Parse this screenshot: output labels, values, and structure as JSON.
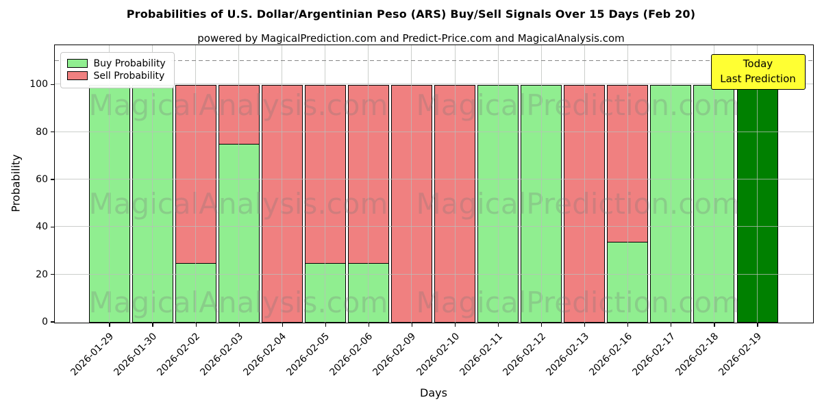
{
  "header": {
    "title": "Probabilities of U.S. Dollar/Argentinian Peso (ARS) Buy/Sell Signals Over 15 Days (Feb 20)",
    "subtitle": "powered by MagicalPrediction.com and Predict-Price.com and MagicalAnalysis.com"
  },
  "annotation": {
    "line1": "Today",
    "line2": "Last Prediction",
    "bg": "#ffff33",
    "border_color": "#000000"
  },
  "watermarks": {
    "texts": [
      "MagicalAnalysis.com",
      "MagicalPrediction.com"
    ],
    "color": "rgba(120,120,120,0.27)",
    "rows": 3
  },
  "chart_data": {
    "type": "bar",
    "stacked": true,
    "title": "Probabilities of U.S. Dollar/Argentinian Peso (ARS) Buy/Sell Signals Over 15 Days (Feb 20)",
    "xlabel": "Days",
    "ylabel": "Probability",
    "categories": [
      "2026-01-29",
      "2026-01-30",
      "2026-02-02",
      "2026-02-03",
      "2026-02-04",
      "2026-02-05",
      "2026-02-06",
      "2026-02-09",
      "2026-02-10",
      "2026-02-11",
      "2026-02-12",
      "2026-02-13",
      "2026-02-16",
      "2026-02-17",
      "2026-02-18",
      "2026-02-19"
    ],
    "series": [
      {
        "name": "Buy Probability",
        "color": "#90ee90",
        "values": [
          100,
          100,
          25,
          75,
          0,
          25,
          25,
          0,
          0,
          100,
          100,
          0,
          34,
          100,
          100,
          100
        ]
      },
      {
        "name": "Sell Probability",
        "color": "#f08080",
        "values": [
          0,
          0,
          75,
          25,
          100,
          75,
          75,
          100,
          100,
          0,
          0,
          100,
          66,
          0,
          0,
          0
        ]
      }
    ],
    "today": {
      "category": "2026-02-19",
      "color": "#008000"
    },
    "yticks": [
      0,
      20,
      40,
      60,
      80,
      100
    ],
    "ylim": [
      0,
      116.5
    ],
    "dashed_line_y": 110,
    "dashed_line_color": "#848484",
    "grid": true,
    "grid_color": "#b0b0b0",
    "bar_edge_color": "#000000",
    "legend_position": "upper left"
  }
}
